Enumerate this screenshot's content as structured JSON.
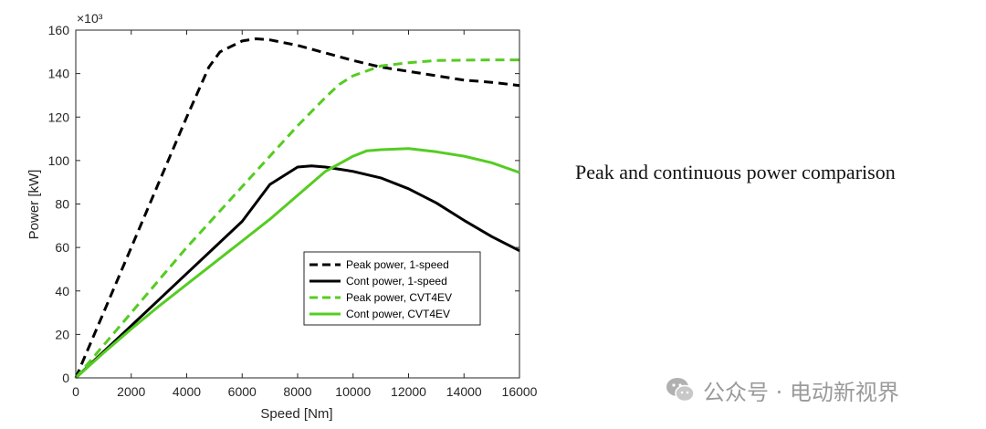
{
  "chart_data": {
    "type": "line",
    "xlabel": "Speed [Nm]",
    "ylabel": "Power [kW]",
    "y_multiplier_label": "×10³",
    "xlim": [
      0,
      16000
    ],
    "ylim": [
      0,
      160
    ],
    "x_ticks": [
      0,
      2000,
      4000,
      6000,
      8000,
      10000,
      12000,
      14000,
      16000
    ],
    "y_ticks": [
      0,
      20,
      40,
      60,
      80,
      100,
      120,
      140,
      160
    ],
    "grid": false,
    "legend_position": "lower-center",
    "series": [
      {
        "name": "Peak power, 1-speed",
        "color": "#000000",
        "style": "dashed",
        "x": [
          0,
          1000,
          2000,
          3000,
          4000,
          4800,
          5200,
          6000,
          6500,
          7000,
          8000,
          9000,
          10000,
          11000,
          12000,
          13000,
          14000,
          15000,
          16000
        ],
        "y": [
          0,
          30,
          60,
          90,
          120,
          143,
          150,
          155,
          156,
          155.5,
          153,
          149.5,
          146,
          143,
          141,
          139,
          137,
          136,
          134.5
        ]
      },
      {
        "name": "Cont power, 1-speed",
        "color": "#000000",
        "style": "solid",
        "x": [
          0,
          1000,
          2000,
          3000,
          4000,
          5000,
          6000,
          7000,
          8000,
          8500,
          9000,
          10000,
          11000,
          12000,
          13000,
          14000,
          15000,
          16000
        ],
        "y": [
          0,
          12,
          24,
          36,
          48,
          60,
          72,
          89,
          97,
          97.5,
          97,
          95,
          92,
          87,
          80.5,
          72.5,
          65,
          58.5
        ]
      },
      {
        "name": "Peak power, CVT4EV",
        "color": "#55cc22",
        "style": "dashed",
        "x": [
          0,
          1000,
          2000,
          3000,
          4000,
          5000,
          6000,
          7000,
          8000,
          9000,
          9500,
          10000,
          11000,
          12000,
          13000,
          14000,
          15000,
          16000
        ],
        "y": [
          0,
          15,
          30,
          45,
          60,
          74,
          88,
          102,
          116,
          129,
          135,
          139,
          143.5,
          145,
          146,
          146.2,
          146.3,
          146.3
        ]
      },
      {
        "name": "Cont power, CVT4EV",
        "color": "#55cc22",
        "style": "solid",
        "x": [
          0,
          1000,
          2000,
          3000,
          4000,
          5000,
          6000,
          7000,
          8000,
          9000,
          10000,
          10500,
          11000,
          12000,
          13000,
          14000,
          15000,
          16000
        ],
        "y": [
          0,
          11.5,
          22.5,
          33,
          43,
          53,
          63,
          73,
          84,
          95,
          102,
          104.5,
          105,
          105.5,
          104,
          102,
          99,
          94.5
        ]
      }
    ]
  },
  "caption": "Peak and continuous power comparison",
  "watermark": {
    "icon": "wechat-icon",
    "text": "公众号 · 电动新视界"
  }
}
